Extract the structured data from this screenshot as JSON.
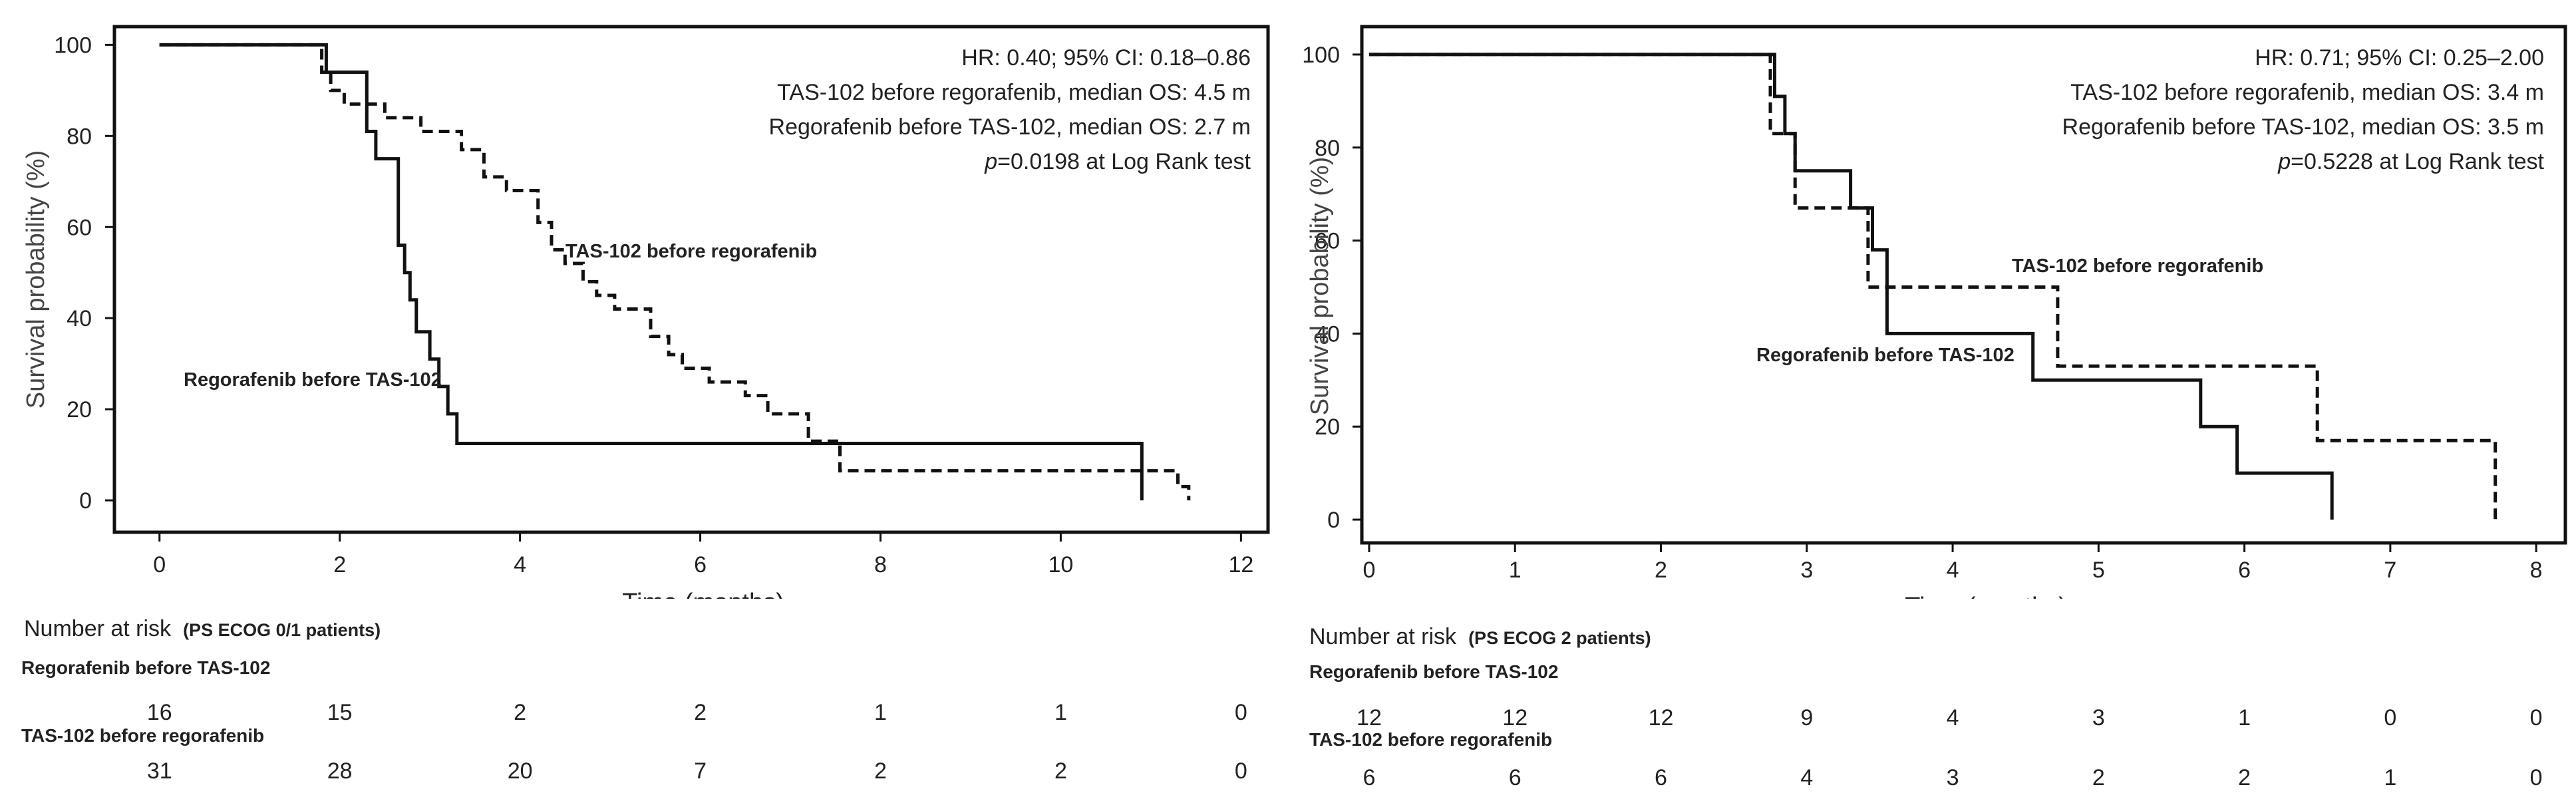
{
  "chart_data": [
    {
      "type": "line",
      "subtype": "kaplan-meier",
      "xlabel": "Time (months)",
      "ylabel": "Survival probability (%)",
      "xlim": [
        -0.5,
        12.3
      ],
      "ylim": [
        -7,
        104
      ],
      "xticks": [
        0,
        2,
        4,
        6,
        8,
        10,
        12
      ],
      "yticks": [
        0,
        20,
        40,
        60,
        80,
        100
      ],
      "annotations": [
        "HR: 0.40; 95% CI: 0.18–0.86",
        "TAS-102 before regorafenib, median OS: 4.5 m",
        "Regorafenib before TAS-102, median OS: 2.7 m"
      ],
      "pvalue": {
        "p_label": "p",
        "text": "=0.0198 at Log Rank test"
      },
      "series": [
        {
          "name": "Regorafenib before TAS-102",
          "style": "solid",
          "x": [
            0,
            1.85,
            1.85,
            2.3,
            2.3,
            2.4,
            2.4,
            2.65,
            2.65,
            2.72,
            2.72,
            2.78,
            2.78,
            2.85,
            2.85,
            3.0,
            3.0,
            3.1,
            3.1,
            3.2,
            3.2,
            3.3,
            3.3,
            10.9,
            10.9
          ],
          "y": [
            100,
            100,
            94,
            94,
            81,
            81,
            75,
            75,
            56,
            56,
            50,
            50,
            44,
            44,
            37,
            37,
            31,
            31,
            25,
            25,
            19,
            19,
            12.5,
            12.5,
            0
          ]
        },
        {
          "name": "TAS-102 before regorafenib",
          "style": "dashed",
          "x": [
            0,
            1.8,
            1.8,
            1.9,
            1.9,
            2.05,
            2.05,
            2.5,
            2.5,
            2.9,
            2.9,
            3.35,
            3.35,
            3.6,
            3.6,
            3.85,
            3.85,
            4.2,
            4.2,
            4.35,
            4.35,
            4.5,
            4.5,
            4.7,
            4.7,
            4.85,
            4.85,
            5.05,
            5.05,
            5.45,
            5.45,
            5.65,
            5.65,
            5.8,
            5.8,
            6.1,
            6.1,
            6.5,
            6.5,
            6.75,
            6.75,
            7.2,
            7.2,
            7.55,
            7.55,
            11.3,
            11.3,
            11.42,
            11.42
          ],
          "y": [
            100,
            100,
            94,
            94,
            90,
            90,
            87,
            87,
            84,
            84,
            81,
            81,
            77,
            77,
            71,
            71,
            68,
            68,
            61,
            61,
            55,
            55,
            52,
            52,
            48,
            48,
            45,
            45,
            42,
            42,
            36,
            36,
            32,
            32,
            29,
            29,
            26,
            26,
            23,
            23,
            19,
            19,
            13,
            13,
            6.5,
            6.5,
            3,
            3,
            0
          ]
        }
      ],
      "curve_labels": [
        {
          "series": "TAS-102 before regorafenib",
          "text": "TAS-102 before regorafenib"
        },
        {
          "series": "Regorafenib before TAS-102",
          "text": "Regorafenib before TAS-102"
        }
      ],
      "risk_table": {
        "title": "Number at risk",
        "subtitle": "(PS ECOG 0/1 patients)",
        "times": [
          0,
          2,
          4,
          6,
          8,
          10,
          12
        ],
        "rows": [
          {
            "label": "Regorafenib before TAS-102",
            "values": [
              "16",
              "15",
              "2",
              "2",
              "1",
              "1",
              "0"
            ]
          },
          {
            "label": "TAS-102 before regorafenib",
            "values": [
              "31",
              "28",
              "20",
              "7",
              "2",
              "2",
              "0"
            ]
          }
        ]
      }
    },
    {
      "type": "line",
      "subtype": "kaplan-meier",
      "xlabel": "Time (months)",
      "ylabel": "Survival probability (%)",
      "xlim": [
        -0.05,
        8.2
      ],
      "ylim": [
        -5,
        106
      ],
      "xticks": [
        0,
        1,
        2,
        3,
        4,
        5,
        6,
        7,
        8
      ],
      "yticks": [
        0,
        20,
        40,
        60,
        80,
        100
      ],
      "annotations": [
        "HR: 0.71; 95% CI: 0.25–2.00",
        "TAS-102 before regorafenib, median OS: 3.4 m",
        "Regorafenib before TAS-102, median OS: 3.5 m"
      ],
      "pvalue": {
        "p_label": "p",
        "text": "=0.5228 at Log Rank test"
      },
      "series": [
        {
          "name": "Regorafenib before TAS-102",
          "style": "solid",
          "x": [
            0,
            2.78,
            2.78,
            2.85,
            2.85,
            2.92,
            2.92,
            3.3,
            3.3,
            3.45,
            3.45,
            3.55,
            3.55,
            4.55,
            4.55,
            5.7,
            5.7,
            5.95,
            5.95,
            6.6,
            6.6
          ],
          "y": [
            100,
            100,
            91,
            91,
            83,
            83,
            75,
            75,
            67,
            67,
            58,
            58,
            40,
            40,
            30,
            30,
            20,
            20,
            10,
            10,
            0
          ],
          "solid": true
        },
        {
          "name": "TAS-102 before regorafenib",
          "style": "dashed",
          "x": [
            0,
            2.75,
            2.75,
            2.92,
            2.92,
            3.42,
            3.42,
            4.72,
            4.72,
            6.5,
            6.5,
            7.72,
            7.72
          ],
          "y": [
            100,
            100,
            83,
            83,
            67,
            67,
            50,
            50,
            33,
            33,
            17,
            17,
            0
          ]
        }
      ],
      "curve_labels": [
        {
          "series": "TAS-102 before regorafenib",
          "text": "TAS-102 before regorafenib"
        },
        {
          "series": "Regorafenib before TAS-102",
          "text": "Regorafenib before TAS-102"
        }
      ],
      "risk_table": {
        "title": "Number at risk",
        "subtitle": "(PS ECOG 2 patients)",
        "times": [
          0,
          1,
          2,
          3,
          4,
          5,
          6,
          7,
          8
        ],
        "rows": [
          {
            "label": "Regorafenib before TAS-102",
            "values": [
              "12",
              "12",
              "12",
              "9",
              "4",
              "3",
              "1",
              "0",
              "0"
            ]
          },
          {
            "label": "TAS-102 before regorafenib",
            "values": [
              "6",
              "6",
              "6",
              "4",
              "3",
              "2",
              "2",
              "1",
              "0"
            ]
          }
        ]
      }
    }
  ]
}
